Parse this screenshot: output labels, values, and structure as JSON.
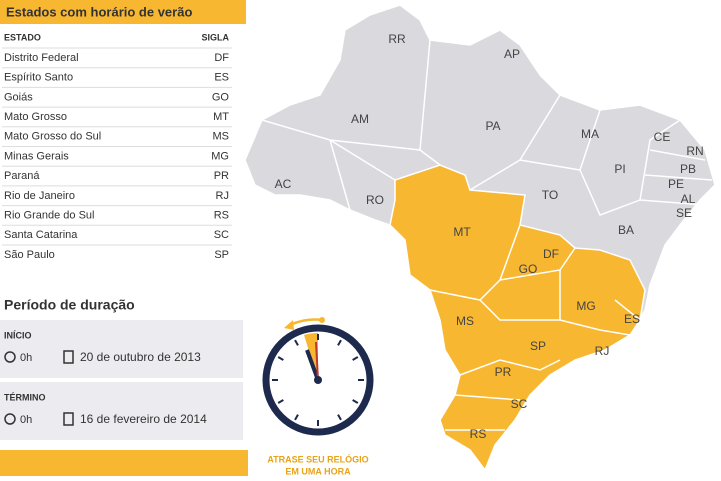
{
  "title": "Estados com horário de verão",
  "table": {
    "columns": [
      "ESTADO",
      "SIGLA"
    ],
    "rows": [
      [
        "Distrito Federal",
        "DF"
      ],
      [
        "Espírito Santo",
        "ES"
      ],
      [
        "Goiás",
        "GO"
      ],
      [
        "Mato Grosso",
        "MT"
      ],
      [
        "Mato Grosso do Sul",
        "MS"
      ],
      [
        "Minas Gerais",
        "MG"
      ],
      [
        "Paraná",
        "PR"
      ],
      [
        "Rio de Janeiro",
        "RJ"
      ],
      [
        "Rio Grande do Sul",
        "RS"
      ],
      [
        "Santa Catarina",
        "SC"
      ],
      [
        "São Paulo",
        "SP"
      ]
    ]
  },
  "period": {
    "title": "Período de duração",
    "start": {
      "label": "INÍCIO",
      "time": "0h",
      "date": "20 de outubro de 2013"
    },
    "end": {
      "label": "TÉRMINO",
      "time": "0h",
      "date": "16 de fevereiro de 2014"
    }
  },
  "map": {
    "labels": [
      "RR",
      "AP",
      "AM",
      "PA",
      "MA",
      "CE",
      "RN",
      "PB",
      "PE",
      "AL",
      "SE",
      "PI",
      "AC",
      "RO",
      "TO",
      "BA",
      "MT",
      "DF",
      "GO",
      "MG",
      "ES",
      "MS",
      "SP",
      "RJ",
      "PR",
      "SC",
      "RS"
    ]
  },
  "caption": [
    "ATRASE SEU RELÓGIO",
    "EM UMA HORA"
  ]
}
